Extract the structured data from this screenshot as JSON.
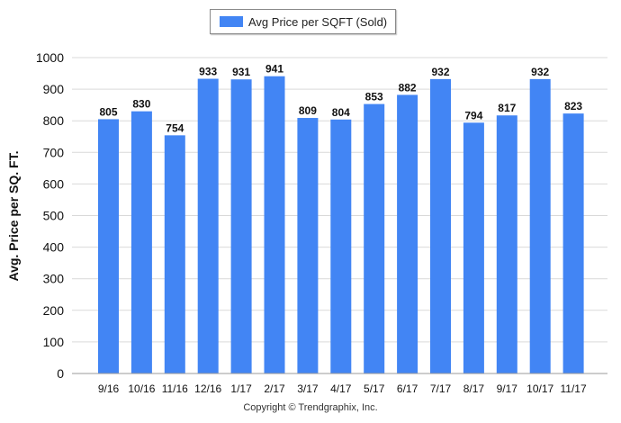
{
  "chart_data": {
    "type": "bar",
    "categories": [
      "9/16",
      "10/16",
      "11/16",
      "12/16",
      "1/17",
      "2/17",
      "3/17",
      "4/17",
      "5/17",
      "6/17",
      "7/17",
      "8/17",
      "9/17",
      "10/17",
      "11/17"
    ],
    "series": [
      {
        "name": "Avg Price per SQFT (Sold)",
        "values": [
          805,
          830,
          754,
          933,
          931,
          941,
          809,
          804,
          853,
          882,
          932,
          794,
          817,
          932,
          823
        ]
      }
    ],
    "data_labels": [
      "805",
      "830",
      "754",
      "933",
      "931",
      "941",
      "809",
      "804",
      "853",
      "882",
      "932",
      "794",
      "817",
      "932",
      "823"
    ],
    "ylabel": "Avg. Price per SQ. FT.",
    "ylim": [
      0,
      1000
    ],
    "yticks": [
      0,
      100,
      200,
      300,
      400,
      500,
      600,
      700,
      800,
      900,
      1000
    ],
    "ytick_labels": [
      "0",
      "100",
      "200",
      "300",
      "400",
      "500",
      "600",
      "700",
      "800",
      "900",
      "1000"
    ],
    "grid": true,
    "legend_position": "top-center",
    "bar_color": "#4285f4"
  },
  "footer": {
    "copyright": "Copyright © Trendgraphix, Inc."
  }
}
